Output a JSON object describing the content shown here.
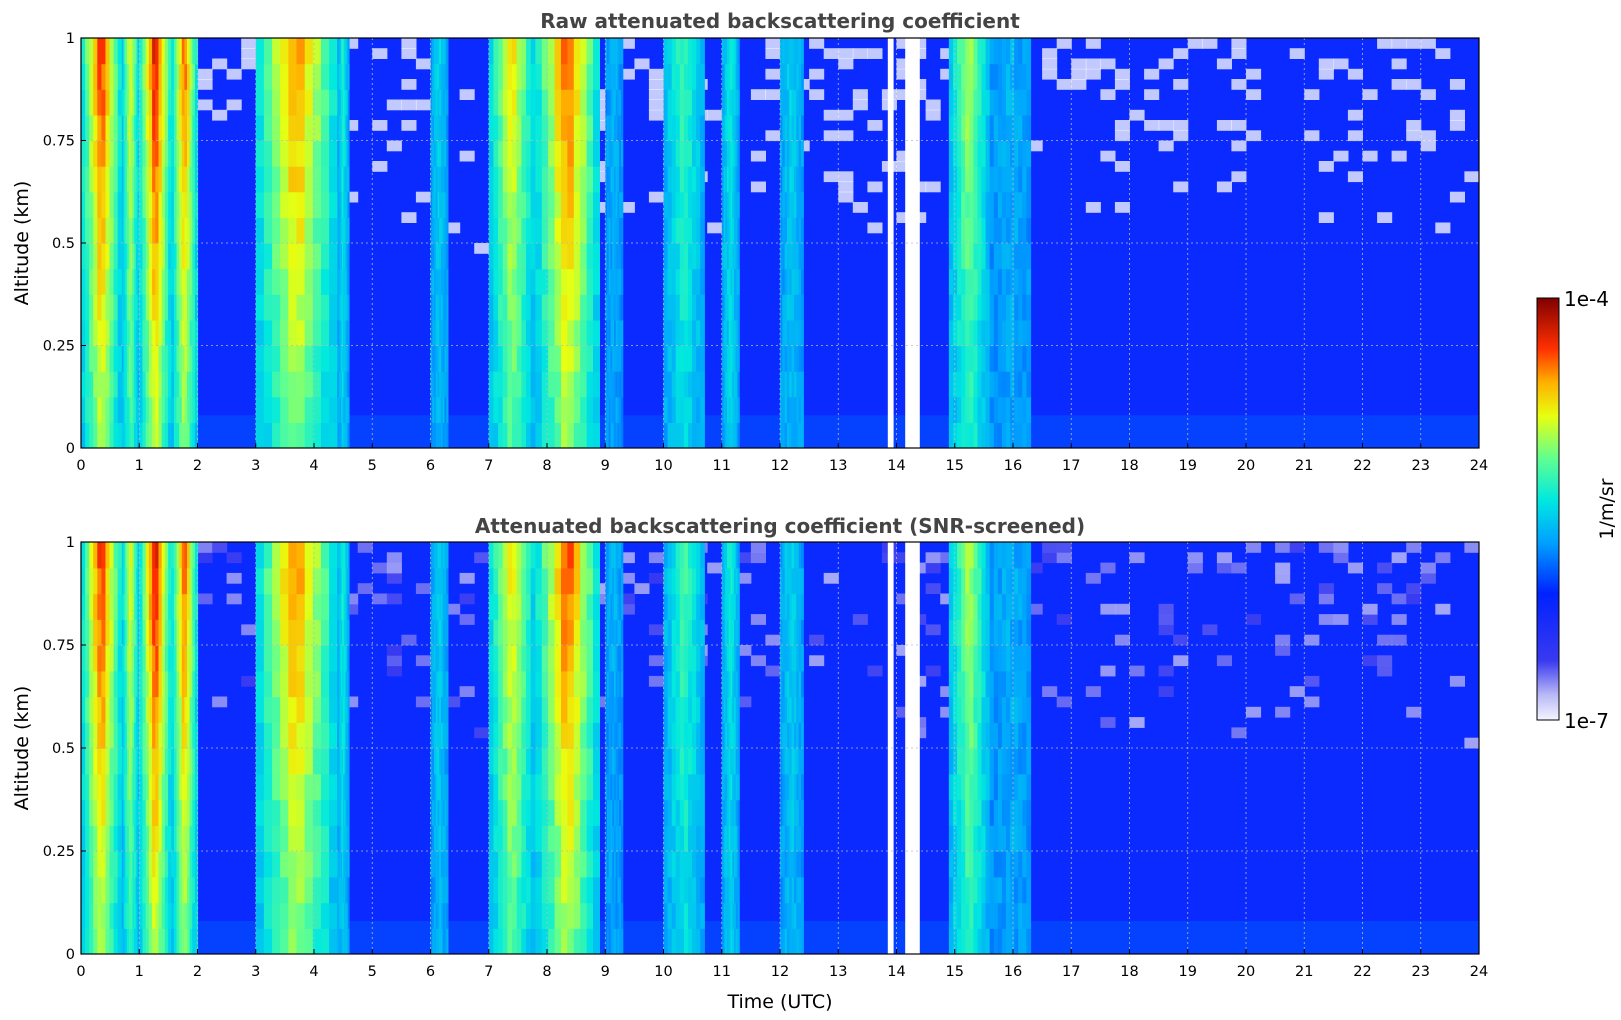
{
  "chart_data": [
    {
      "type": "heatmap",
      "title": "Raw attenuated backscattering coefficient",
      "xlabel": "",
      "ylabel": "Altitude (km)",
      "xlim": [
        0,
        24
      ],
      "ylim": [
        0,
        1
      ],
      "x_ticks": [
        "0",
        "1",
        "2",
        "3",
        "4",
        "5",
        "6",
        "7",
        "8",
        "9",
        "10",
        "11",
        "12",
        "13",
        "14",
        "15",
        "16",
        "17",
        "18",
        "19",
        "20",
        "21",
        "22",
        "23",
        "24"
      ],
      "y_ticks": [
        "0",
        "0.25",
        "0.5",
        "0.75",
        "1"
      ],
      "grid": true,
      "screened": false,
      "features": [
        {
          "x": [
            0.0,
            0.7
          ],
          "top": 1.0,
          "peak": 0.92
        },
        {
          "x": [
            0.7,
            1.0
          ],
          "top": 1.0,
          "peak": 0.75
        },
        {
          "x": [
            1.0,
            1.55
          ],
          "top": 1.0,
          "peak": 0.96
        },
        {
          "x": [
            1.55,
            2.0
          ],
          "top": 1.0,
          "peak": 0.88
        },
        {
          "x": [
            3.0,
            4.4
          ],
          "top": 1.0,
          "peak": 0.86
        },
        {
          "x": [
            4.4,
            4.6
          ],
          "top": 1.0,
          "peak": 0.55
        },
        {
          "x": [
            6.0,
            6.3
          ],
          "top": 1.0,
          "peak": 0.5
        },
        {
          "x": [
            7.0,
            7.8
          ],
          "top": 1.0,
          "peak": 0.78
        },
        {
          "x": [
            7.8,
            8.9
          ],
          "top": 1.0,
          "peak": 0.9
        },
        {
          "x": [
            9.0,
            9.3
          ],
          "top": 1.0,
          "peak": 0.45
        },
        {
          "x": [
            10.0,
            10.7
          ],
          "top": 1.0,
          "peak": 0.6
        },
        {
          "x": [
            11.0,
            11.3
          ],
          "top": 1.0,
          "peak": 0.55
        },
        {
          "x": [
            12.0,
            12.4
          ],
          "top": 1.0,
          "peak": 0.5
        },
        {
          "x": [
            14.9,
            15.6
          ],
          "top": 1.0,
          "peak": 0.7
        },
        {
          "x": [
            15.6,
            16.3
          ],
          "top": 1.0,
          "peak": 0.45
        }
      ],
      "gaps": [
        [
          13.85,
          13.95
        ],
        [
          14.15,
          14.4
        ]
      ]
    },
    {
      "type": "heatmap",
      "title": "Attenuated backscattering coefficient (SNR-screened)",
      "xlabel": "Time (UTC)",
      "ylabel": "Altitude (km)",
      "xlim": [
        0,
        24
      ],
      "ylim": [
        0,
        1
      ],
      "x_ticks": [
        "0",
        "1",
        "2",
        "3",
        "4",
        "5",
        "6",
        "7",
        "8",
        "9",
        "10",
        "11",
        "12",
        "13",
        "14",
        "15",
        "16",
        "17",
        "18",
        "19",
        "20",
        "21",
        "22",
        "23",
        "24"
      ],
      "y_ticks": [
        "0",
        "0.25",
        "0.5",
        "0.75",
        "1"
      ],
      "grid": true,
      "screened": true,
      "features": [
        {
          "x": [
            0.0,
            0.7
          ],
          "top": 1.0,
          "peak": 0.92
        },
        {
          "x": [
            0.7,
            1.0
          ],
          "top": 1.0,
          "peak": 0.75
        },
        {
          "x": [
            1.0,
            1.55
          ],
          "top": 1.0,
          "peak": 0.96
        },
        {
          "x": [
            1.55,
            2.0
          ],
          "top": 1.0,
          "peak": 0.88
        },
        {
          "x": [
            3.0,
            4.4
          ],
          "top": 1.0,
          "peak": 0.86
        },
        {
          "x": [
            4.4,
            4.6
          ],
          "top": 1.0,
          "peak": 0.55
        },
        {
          "x": [
            6.0,
            6.3
          ],
          "top": 1.0,
          "peak": 0.5
        },
        {
          "x": [
            7.0,
            7.8
          ],
          "top": 1.0,
          "peak": 0.78
        },
        {
          "x": [
            7.8,
            8.9
          ],
          "top": 1.0,
          "peak": 0.9
        },
        {
          "x": [
            9.0,
            9.3
          ],
          "top": 1.0,
          "peak": 0.45
        },
        {
          "x": [
            10.0,
            10.7
          ],
          "top": 1.0,
          "peak": 0.6
        },
        {
          "x": [
            11.0,
            11.3
          ],
          "top": 1.0,
          "peak": 0.55
        },
        {
          "x": [
            12.0,
            12.4
          ],
          "top": 1.0,
          "peak": 0.5
        },
        {
          "x": [
            14.9,
            15.6
          ],
          "top": 1.0,
          "peak": 0.7
        },
        {
          "x": [
            15.6,
            16.3
          ],
          "top": 1.0,
          "peak": 0.45
        }
      ],
      "gaps": [
        [
          13.85,
          13.95
        ],
        [
          14.15,
          14.4
        ]
      ]
    }
  ],
  "colorbar": {
    "label": "1/m/sr",
    "max_label": "1e-4",
    "min_label": "1e-7",
    "range": [
      1e-07,
      0.0001
    ],
    "scale": "log",
    "colormap": "jet",
    "placement": "right"
  }
}
